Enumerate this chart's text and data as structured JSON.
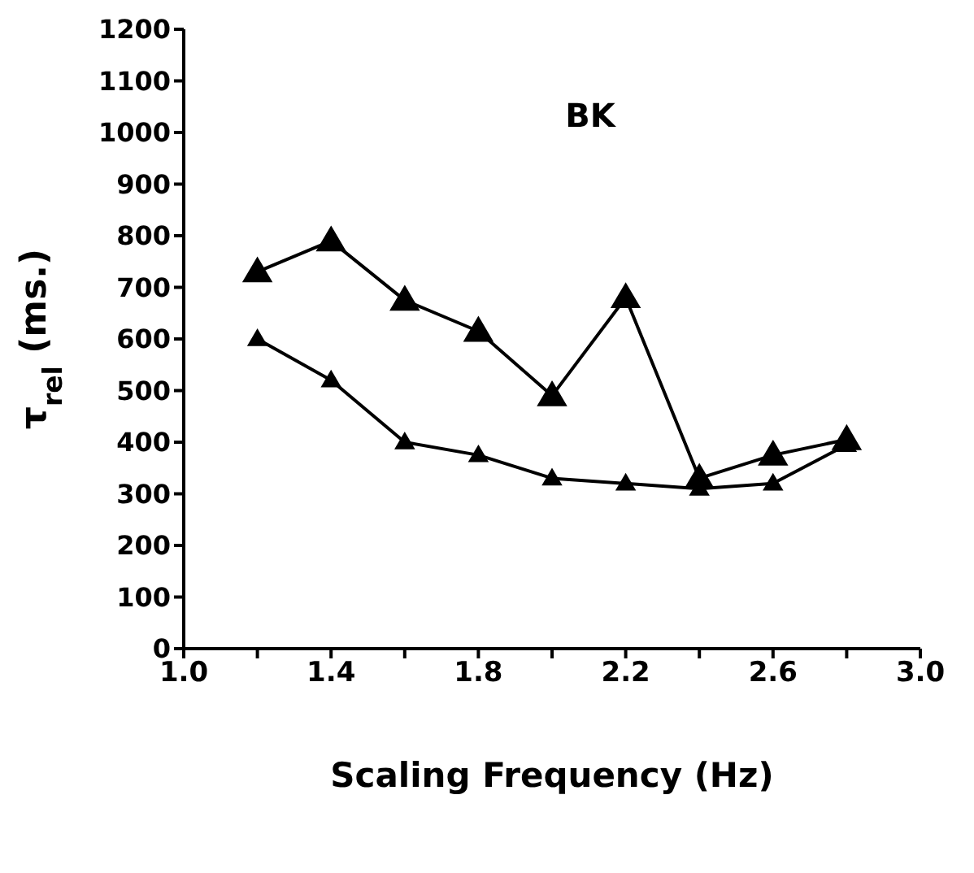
{
  "chart_data": {
    "type": "line",
    "title": "BK",
    "xlabel": "Scaling Frequency (Hz)",
    "ylabel": "τ$_{rel}$ (ms.)",
    "x": [
      1.2,
      1.4,
      1.6,
      1.8,
      2.0,
      2.2,
      2.4,
      2.6,
      2.8
    ],
    "series": [
      {
        "color": "#000000",
        "values": [
          730,
          790,
          675,
          615,
          490,
          680,
          330,
          375,
          405
        ]
      },
      {
        "color": "#000000",
        "values": [
          600,
          520,
          400,
          375,
          330,
          320,
          310,
          320,
          395
        ]
      }
    ],
    "xlim": [
      1.0,
      3.0
    ],
    "xticks": [
      {
        "value": 1.0,
        "label": "1.0"
      },
      {
        "value": 1.2,
        "label": null
      },
      {
        "value": 1.4,
        "label": "1.4"
      },
      {
        "value": 1.6,
        "label": null
      },
      {
        "value": 1.8,
        "label": "1.8"
      },
      {
        "value": 2.0,
        "label": null
      },
      {
        "value": 2.2,
        "label": "2.2"
      },
      {
        "value": 2.4,
        "label": null
      },
      {
        "value": 2.6,
        "label": "2.6"
      },
      {
        "value": 2.8,
        "label": null
      },
      {
        "value": 3.0,
        "label": "3.0"
      }
    ],
    "ylim": [
      0,
      1200
    ],
    "yticks": [
      0,
      100,
      200,
      300,
      400,
      500,
      600,
      700,
      800,
      900,
      1000,
      1100,
      1200
    ],
    "grid": false,
    "legend": false,
    "marker": "triangle",
    "line_style": "solid"
  }
}
